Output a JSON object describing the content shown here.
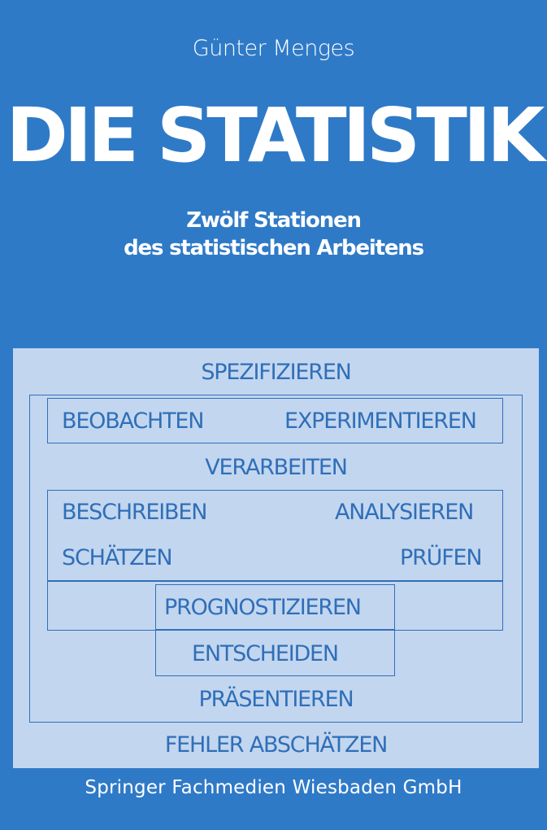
{
  "author": "Günter Menges",
  "title": "DIE STATISTIK",
  "subtitle": {
    "line1": "Zwölf Stationen",
    "line2": "des statistischen Arbeitens"
  },
  "diagram": {
    "spezifizieren": "SPEZIFIZIEREN",
    "beobachten": "BEOBACHTEN",
    "experimentieren": "EXPERIMENTIEREN",
    "verarbeiten": "VERARBEITEN",
    "beschreiben": "BESCHREIBEN",
    "analysieren": "ANALYSIEREN",
    "schaetzen": "SCHÄTZEN",
    "pruefen": "PRÜFEN",
    "prognostizieren": "PROGNOSTIZIEREN",
    "entscheiden": "ENTSCHEIDEN",
    "praesentieren": "PRÄSENTIEREN",
    "fehler_abschaetzen": "FEHLER ABSCHÄTZEN"
  },
  "publisher": "Springer Fachmedien Wiesbaden GmbH",
  "colors": {
    "background": "#2f7ac7",
    "panel": "#c3d6ef",
    "diagram_text": "#2f6fb8",
    "text": "#ffffff"
  }
}
